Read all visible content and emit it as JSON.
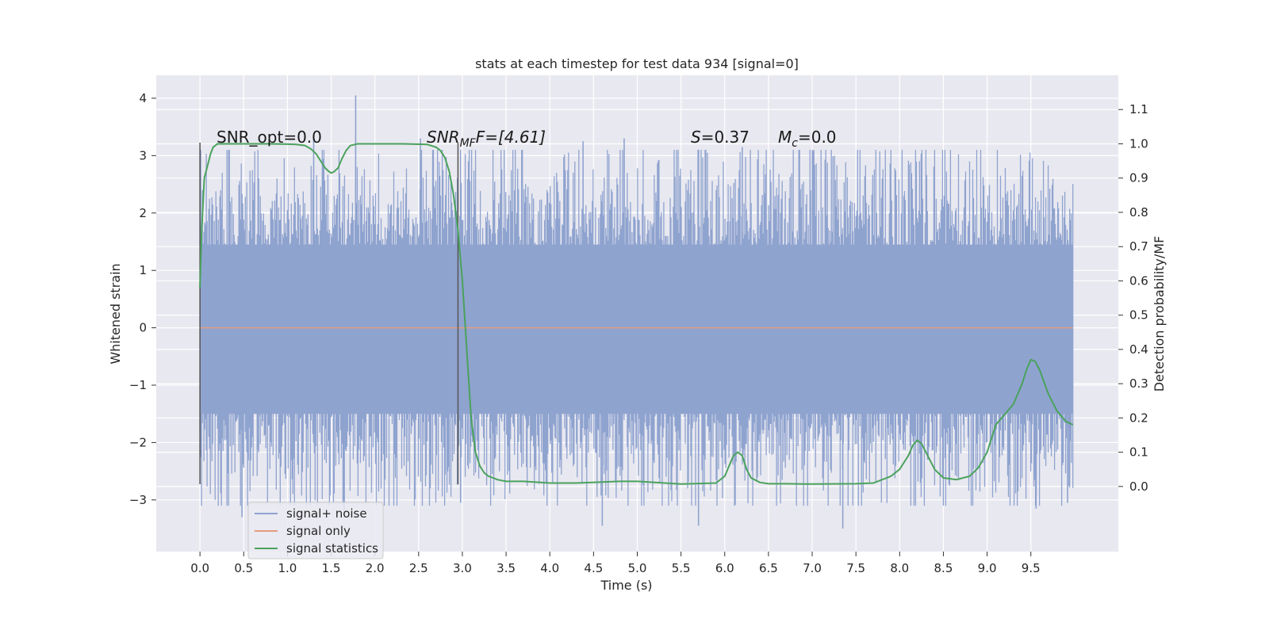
{
  "chart_data": {
    "type": "line",
    "title": "stats at each timestep for test data 934 [signal=0]",
    "xlabel": "Time (s)",
    "ylabel": "Whitened strain",
    "ylabel_right": "Detection probability/MF",
    "xlim": [
      -0.5,
      10.5
    ],
    "ylim": [
      -3.9,
      4.4
    ],
    "ylim_right": [
      -0.19,
      1.2
    ],
    "x_ticks": [
      "0.0",
      "0.5",
      "1.0",
      "1.5",
      "2.0",
      "2.5",
      "3.0",
      "3.5",
      "4.0",
      "4.5",
      "5.0",
      "5.5",
      "6.0",
      "6.5",
      "7.0",
      "7.5",
      "8.0",
      "8.5",
      "9.0",
      "9.5"
    ],
    "x_tick_values": [
      0.0,
      0.5,
      1.0,
      1.5,
      2.0,
      2.5,
      3.0,
      3.5,
      4.0,
      4.5,
      5.0,
      5.5,
      6.0,
      6.5,
      7.0,
      7.5,
      8.0,
      8.5,
      9.0,
      9.5
    ],
    "y_ticks": [
      "4",
      "3",
      "2",
      "1",
      "0",
      "−1",
      "−2",
      "−3"
    ],
    "y_tick_values": [
      4,
      3,
      2,
      1,
      0,
      -1,
      -2,
      -3
    ],
    "y_right_ticks": [
      "1.1",
      "1.0",
      "0.9",
      "0.8",
      "0.7",
      "0.6",
      "0.5",
      "0.4",
      "0.3",
      "0.2",
      "0.1",
      "0.0"
    ],
    "y_right_tick_values": [
      1.1,
      1.0,
      0.9,
      0.8,
      0.7,
      0.6,
      0.5,
      0.4,
      0.3,
      0.2,
      0.1,
      0.0
    ],
    "grid": true,
    "legend_position": "bottom-left",
    "legend": [
      "signal+ noise",
      "signal only",
      "signal statistics"
    ],
    "colors": {
      "noise": "#8fa3cf",
      "signal_only": "#e59c7e",
      "statistics": "#4aa25c",
      "background": "#e8e8f0",
      "grid": "#ffffff",
      "vline": "#555555"
    },
    "annotations": {
      "snr_opt": "SNR_opt=0.0",
      "snr_mf_main": "SNR",
      "snr_mf_sub": "MF",
      "snr_mf_value": "F=[4.61]",
      "s_var": "S",
      "s_value": "=0.37",
      "mc_var": "M",
      "mc_sub": "c",
      "mc_value": "=0.0"
    },
    "vertical_lines_x": [
      0.0,
      2.95
    ],
    "noise_series": {
      "name": "signal+ noise",
      "x_range": [
        0.0,
        9.98
      ],
      "dense_band": [
        -1.5,
        1.45
      ],
      "peaks": [
        {
          "x": 1.78,
          "y": 4.05
        },
        {
          "x": 2.52,
          "y": 3.3
        },
        {
          "x": 1.3,
          "y": 3.3
        },
        {
          "x": 6.2,
          "y": 3.15
        },
        {
          "x": 4.38,
          "y": 3.25
        },
        {
          "x": 4.85,
          "y": 3.3
        },
        {
          "x": 1.65,
          "y": -3.25
        },
        {
          "x": 0.48,
          "y": -3.3
        },
        {
          "x": 2.98,
          "y": -3.05
        },
        {
          "x": 5.7,
          "y": -3.45
        },
        {
          "x": 7.35,
          "y": -3.5
        },
        {
          "x": 4.6,
          "y": -3.45
        },
        {
          "x": 9.56,
          "y": -3.15
        },
        {
          "x": 9.92,
          "y": -3.05
        }
      ]
    },
    "signal_only_series": {
      "name": "signal only",
      "x": [
        0.0,
        9.98
      ],
      "y": [
        0.0,
        0.0
      ]
    },
    "statistics_series": {
      "name": "signal statistics",
      "x": [
        0.0,
        0.02,
        0.05,
        0.08,
        0.12,
        0.15,
        0.2,
        0.3,
        0.5,
        0.8,
        1.0,
        1.1,
        1.2,
        1.27,
        1.33,
        1.38,
        1.43,
        1.47,
        1.5,
        1.53,
        1.58,
        1.62,
        1.67,
        1.72,
        1.8,
        1.9,
        2.0,
        2.3,
        2.6,
        2.7,
        2.75,
        2.8,
        2.85,
        2.9,
        2.95,
        3.0,
        3.05,
        3.1,
        3.15,
        3.2,
        3.25,
        3.3,
        3.4,
        3.5,
        3.7,
        4.0,
        4.3,
        4.8,
        5.0,
        5.5,
        5.9,
        6.0,
        6.05,
        6.1,
        6.15,
        6.2,
        6.25,
        6.3,
        6.4,
        6.5,
        6.7,
        7.0,
        7.5,
        7.7,
        7.9,
        8.0,
        8.1,
        8.15,
        8.2,
        8.25,
        8.3,
        8.4,
        8.5,
        8.65,
        8.8,
        8.9,
        9.0,
        9.05,
        9.1,
        9.2,
        9.3,
        9.35,
        9.4,
        9.45,
        9.5,
        9.55,
        9.6,
        9.7,
        9.8,
        9.9,
        9.98
      ],
      "y": [
        0.58,
        0.75,
        0.9,
        0.93,
        0.97,
        0.99,
        1.0,
        1.0,
        1.0,
        1.0,
        0.999,
        0.998,
        0.995,
        0.985,
        0.97,
        0.95,
        0.93,
        0.92,
        0.915,
        0.918,
        0.93,
        0.955,
        0.98,
        0.995,
        1.0,
        1.0,
        1.0,
        1.0,
        0.998,
        0.99,
        0.98,
        0.96,
        0.92,
        0.85,
        0.75,
        0.6,
        0.4,
        0.2,
        0.1,
        0.06,
        0.04,
        0.03,
        0.02,
        0.015,
        0.015,
        0.01,
        0.01,
        0.015,
        0.015,
        0.007,
        0.01,
        0.03,
        0.06,
        0.09,
        0.1,
        0.09,
        0.05,
        0.025,
        0.012,
        0.008,
        0.008,
        0.007,
        0.008,
        0.01,
        0.03,
        0.05,
        0.09,
        0.12,
        0.135,
        0.125,
        0.1,
        0.05,
        0.025,
        0.02,
        0.03,
        0.055,
        0.1,
        0.14,
        0.18,
        0.21,
        0.24,
        0.27,
        0.3,
        0.34,
        0.37,
        0.365,
        0.34,
        0.27,
        0.22,
        0.19,
        0.18
      ]
    }
  }
}
